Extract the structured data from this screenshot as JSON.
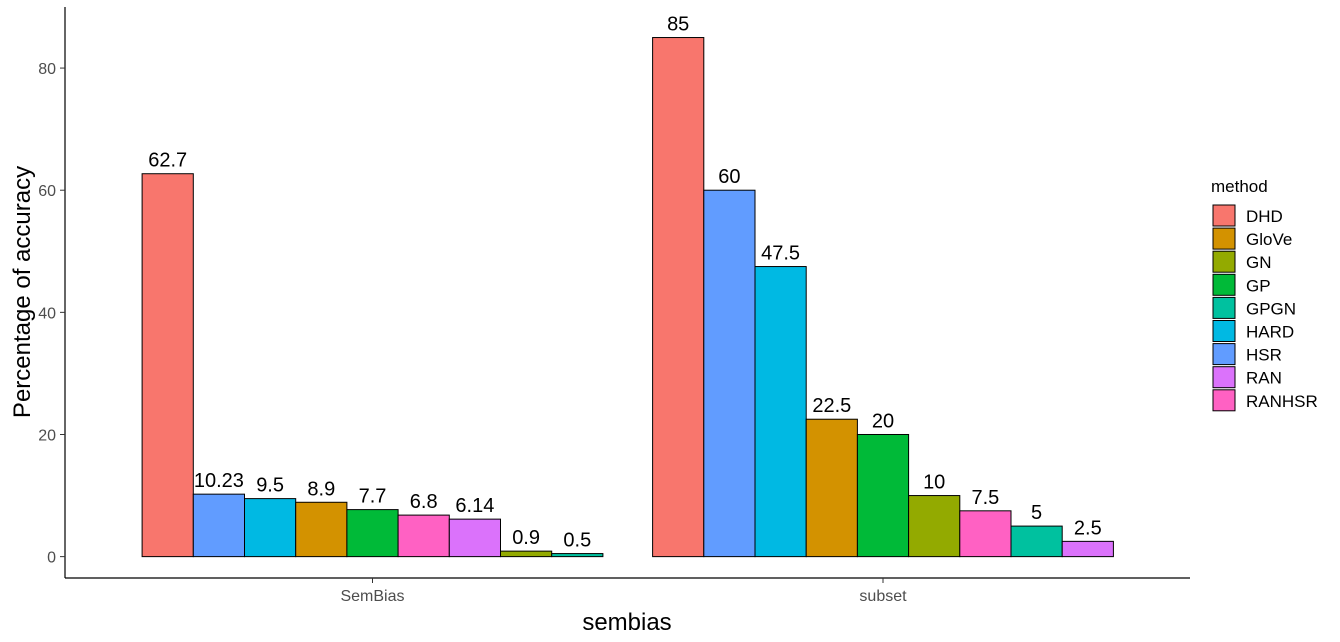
{
  "chart_data": {
    "type": "bar",
    "xlabel": "sembias",
    "ylabel": "Percentage of accuracy",
    "ylim": [
      -3.5,
      90
    ],
    "yticks": [
      0,
      20,
      40,
      60,
      80
    ],
    "grid": false,
    "legend_placement": "right",
    "legend": {
      "title": "method",
      "entries": [
        {
          "name": "DHD",
          "color": "#F8766D"
        },
        {
          "name": "GloVe",
          "color": "#D39200"
        },
        {
          "name": "GN",
          "color": "#93AA00"
        },
        {
          "name": "GP",
          "color": "#00BA38"
        },
        {
          "name": "GPGN",
          "color": "#00C19F"
        },
        {
          "name": "HARD",
          "color": "#00B9E3"
        },
        {
          "name": "HSR",
          "color": "#619CFF"
        },
        {
          "name": "RAN",
          "color": "#DB72FB"
        },
        {
          "name": "RANHSR",
          "color": "#FF61C3"
        }
      ]
    },
    "categories": [
      "SemBias",
      "subset"
    ],
    "groups": [
      {
        "category": "SemBias",
        "bars": [
          {
            "method": "DHD",
            "value": 62.7,
            "label": "62.7"
          },
          {
            "method": "HSR",
            "value": 10.23,
            "label": "10.23"
          },
          {
            "method": "HARD",
            "value": 9.5,
            "label": "9.5"
          },
          {
            "method": "GloVe",
            "value": 8.9,
            "label": "8.9"
          },
          {
            "method": "GP",
            "value": 7.7,
            "label": "7.7"
          },
          {
            "method": "RANHSR",
            "value": 6.8,
            "label": "6.8"
          },
          {
            "method": "RAN",
            "value": 6.14,
            "label": "6.14"
          },
          {
            "method": "GN",
            "value": 0.9,
            "label": "0.9"
          },
          {
            "method": "GPGN",
            "value": 0.5,
            "label": "0.5"
          }
        ]
      },
      {
        "category": "subset",
        "bars": [
          {
            "method": "DHD",
            "value": 85,
            "label": "85"
          },
          {
            "method": "HSR",
            "value": 60,
            "label": "60"
          },
          {
            "method": "HARD",
            "value": 47.5,
            "label": "47.5"
          },
          {
            "method": "GloVe",
            "value": 22.5,
            "label": "22.5"
          },
          {
            "method": "GP",
            "value": 20,
            "label": "20"
          },
          {
            "method": "GN",
            "value": 10,
            "label": "10"
          },
          {
            "method": "RANHSR",
            "value": 7.5,
            "label": "7.5"
          },
          {
            "method": "GPGN",
            "value": 5,
            "label": "5"
          },
          {
            "method": "RAN",
            "value": 2.5,
            "label": "2.5"
          }
        ]
      }
    ]
  }
}
